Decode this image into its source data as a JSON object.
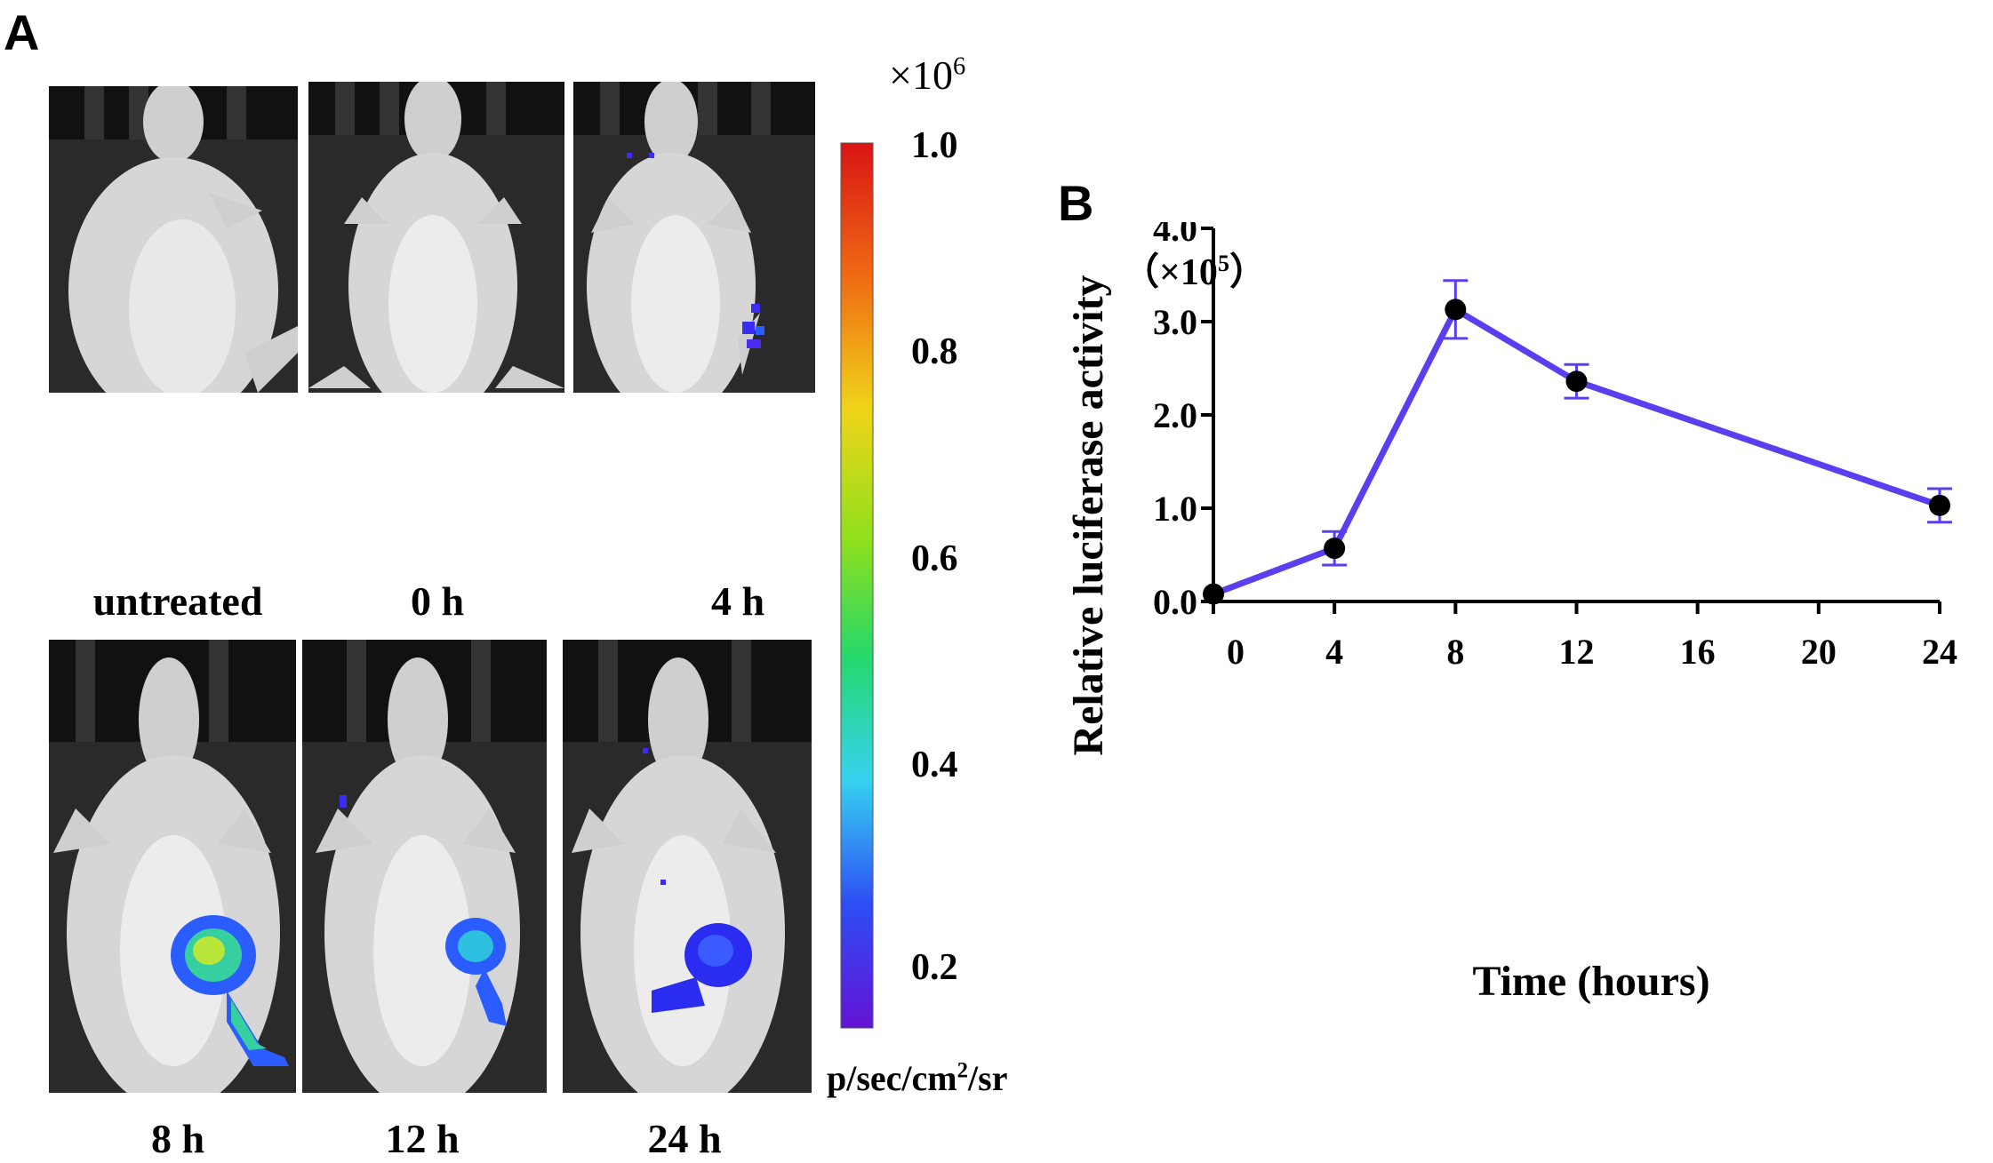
{
  "panel_a": {
    "letter": "A",
    "captions": [
      "untreated",
      "0 h",
      "4 h",
      "8 h",
      "12 h",
      "24 h"
    ],
    "colorbar": {
      "multiplier_base": "×10",
      "multiplier_exp": "6",
      "ticks": [
        "1.0",
        "0.8",
        "0.6",
        "0.4",
        "0.2"
      ],
      "units_pre": "p/sec/cm",
      "units_exp": "2",
      "units_post": "/sr"
    }
  },
  "panel_b": {
    "letter": "B",
    "sci_pre": "（×10",
    "sci_exp": "5",
    "sci_post": "）"
  },
  "chart_data": {
    "type": "line",
    "xlabel": "Time (hours)",
    "ylabel": "Relative luciferase activity",
    "xlim": [
      0,
      24
    ],
    "ylim": [
      0,
      4.0
    ],
    "xticks": [
      0,
      4,
      8,
      12,
      16,
      20,
      24
    ],
    "yticks": [
      "0.0",
      "1.0",
      "2.0",
      "3.0",
      "4.0"
    ],
    "series": [
      {
        "x": [
          0,
          4,
          8,
          12,
          24
        ],
        "y": [
          0.08,
          0.57,
          3.13,
          2.36,
          1.03
        ],
        "error": [
          0.0,
          0.18,
          0.31,
          0.18,
          0.18
        ],
        "color": "#5a3ff0"
      }
    ],
    "marker_color": "#000000",
    "grid": false
  }
}
